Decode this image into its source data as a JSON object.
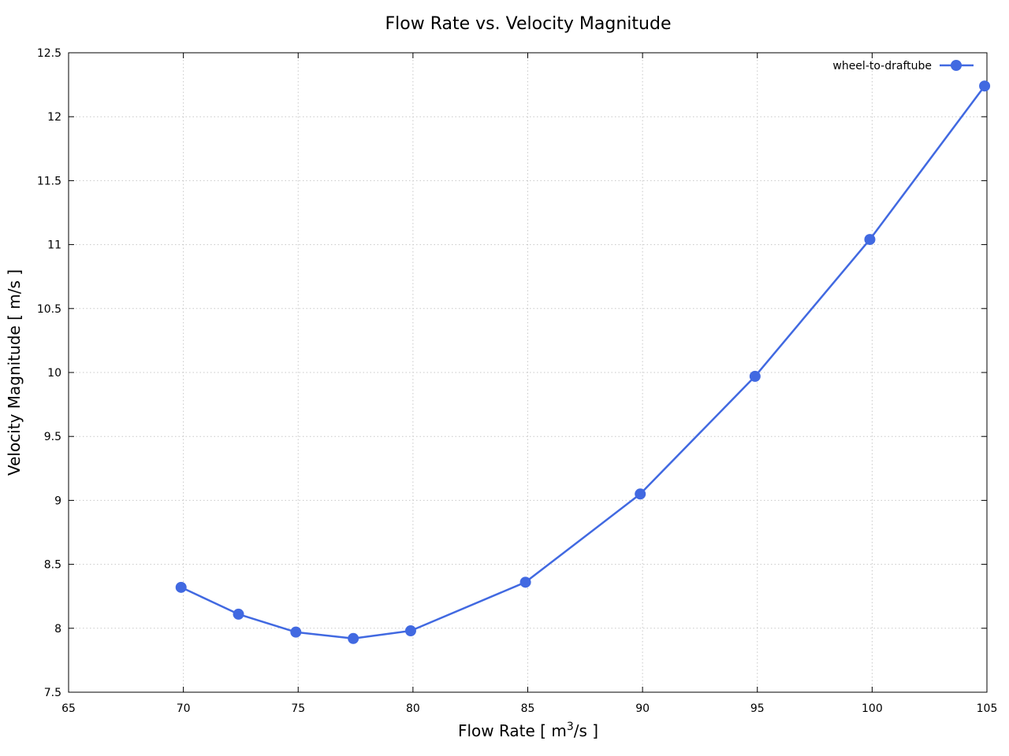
{
  "chart_data": {
    "type": "line",
    "title": "Flow Rate vs. Velocity Magnitude",
    "xlabel_main": "Flow Rate [ m",
    "xlabel_sup": "3",
    "xlabel_tail": "/s ]",
    "ylabel": "Velocity Magnitude [ m/s ]",
    "xlim": [
      65,
      105
    ],
    "ylim": [
      7.5,
      12.5
    ],
    "xticks": [
      65,
      70,
      75,
      80,
      85,
      90,
      95,
      100,
      105
    ],
    "yticks": [
      7.5,
      8,
      8.5,
      9,
      9.5,
      10,
      10.5,
      11,
      11.5,
      12,
      12.5
    ],
    "xtick_labels": [
      "65",
      "70",
      "75",
      "80",
      "85",
      "90",
      "95",
      "100",
      "105"
    ],
    "ytick_labels": [
      "7.5",
      "8",
      "8.5",
      "9",
      "9.5",
      "10",
      "10.5",
      "11",
      "11.5",
      "12",
      "12.5"
    ],
    "grid": true,
    "legend_position": "top-right",
    "series": [
      {
        "name": "wheel-to-draftube",
        "color": "#4169e1",
        "marker": "circle",
        "x": [
          69.9,
          72.4,
          74.9,
          77.4,
          79.9,
          84.9,
          89.9,
          94.9,
          99.9,
          104.9
        ],
        "y": [
          8.32,
          8.11,
          7.97,
          7.92,
          7.98,
          8.36,
          9.05,
          9.97,
          11.04,
          12.24
        ]
      }
    ]
  }
}
